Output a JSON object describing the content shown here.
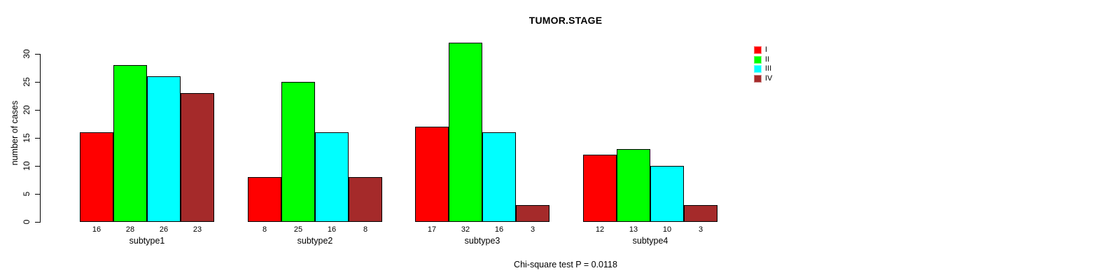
{
  "title": "TUMOR.STAGE",
  "subtitle": "Chi-square test P = 0.0118",
  "y_axis": {
    "label": "number of cases",
    "ticks": [
      0,
      5,
      10,
      15,
      20,
      25,
      30
    ]
  },
  "legend": {
    "entries": [
      {
        "label": "I",
        "color": "#ff0000"
      },
      {
        "label": "II",
        "color": "#00ff00"
      },
      {
        "label": "III",
        "color": "#00ffff"
      },
      {
        "label": "IV",
        "color": "#a52a2a"
      }
    ]
  },
  "chart_data": {
    "type": "bar",
    "title": "TUMOR.STAGE",
    "xlabel": "",
    "ylabel": "number of cases",
    "categories": [
      "subtype1",
      "subtype2",
      "subtype3",
      "subtype4"
    ],
    "series": [
      {
        "name": "I",
        "color": "#ff0000",
        "values": [
          16,
          8,
          17,
          12
        ]
      },
      {
        "name": "II",
        "color": "#00ff00",
        "values": [
          28,
          25,
          32,
          13
        ]
      },
      {
        "name": "III",
        "color": "#00ffff",
        "values": [
          26,
          16,
          16,
          10
        ]
      },
      {
        "name": "IV",
        "color": "#a52a2a",
        "values": [
          23,
          8,
          3,
          3
        ]
      }
    ],
    "group_value_labels": [
      [
        16,
        28,
        26,
        23
      ],
      [
        8,
        25,
        16,
        8
      ],
      [
        17,
        32,
        16,
        3
      ],
      [
        12,
        13,
        10,
        3
      ]
    ],
    "yticks": [
      0,
      5,
      10,
      15,
      20,
      25,
      30
    ],
    "ylim": [
      0,
      32
    ],
    "grid": false,
    "legend_position": "top-right",
    "annotation": "Chi-square test P = 0.0118"
  }
}
